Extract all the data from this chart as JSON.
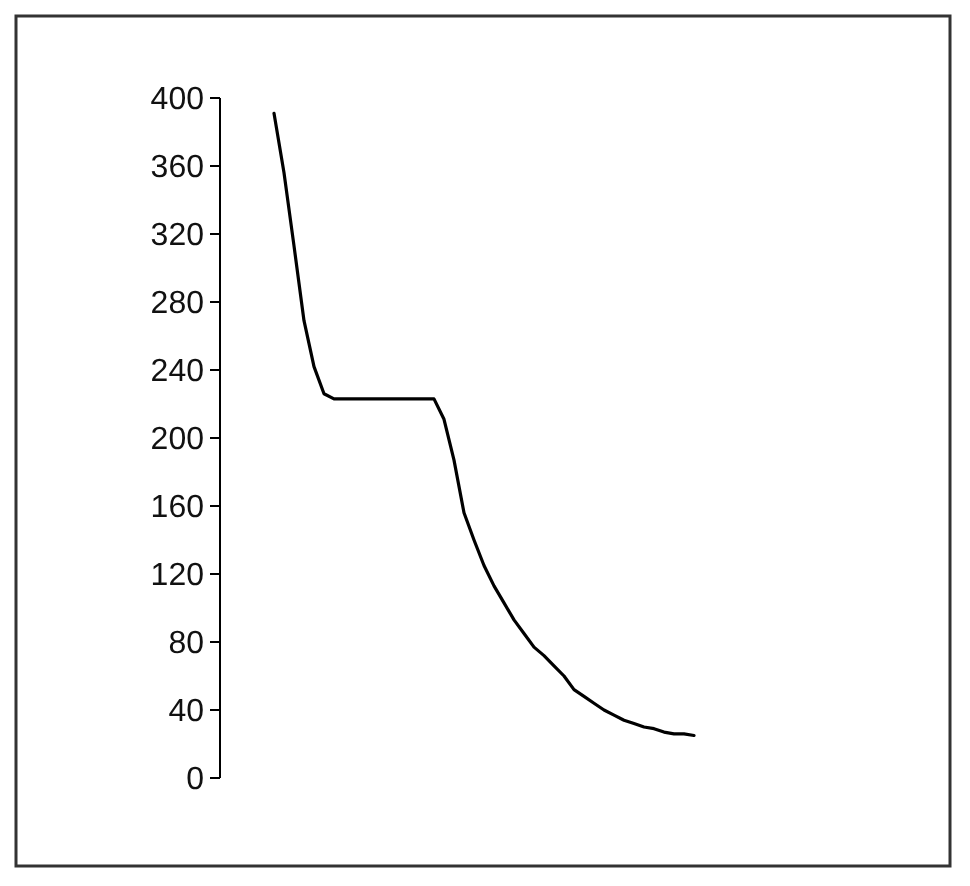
{
  "chart_data": {
    "type": "line",
    "categories": [
      null,
      null,
      null,
      null,
      null,
      null,
      null,
      null,
      null,
      null,
      null,
      null,
      null,
      null,
      null,
      null,
      null,
      null,
      null,
      null,
      null,
      null,
      null,
      null,
      null,
      null,
      null,
      null,
      null,
      null,
      null,
      null,
      null,
      null,
      null,
      null,
      null,
      null,
      null,
      null,
      null,
      null,
      null
    ],
    "series": [
      {
        "color": "#000000",
        "values": [
          391,
          356,
          313,
          269,
          242,
          226,
          223,
          223,
          223,
          223,
          223,
          223,
          223,
          223,
          223,
          223,
          223,
          211,
          187,
          156,
          140,
          125,
          113,
          103,
          93,
          85,
          77,
          72,
          66,
          60,
          52,
          48,
          44,
          40,
          37,
          34,
          32,
          30,
          29,
          27,
          26,
          26,
          25
        ]
      }
    ],
    "ylim": [
      0,
      400
    ],
    "yticks": [
      0,
      40,
      80,
      120,
      160,
      200,
      240,
      280,
      320,
      360,
      400
    ],
    "grid": false,
    "marker": "none",
    "line_style": "solid",
    "tick_labels": "y"
  }
}
